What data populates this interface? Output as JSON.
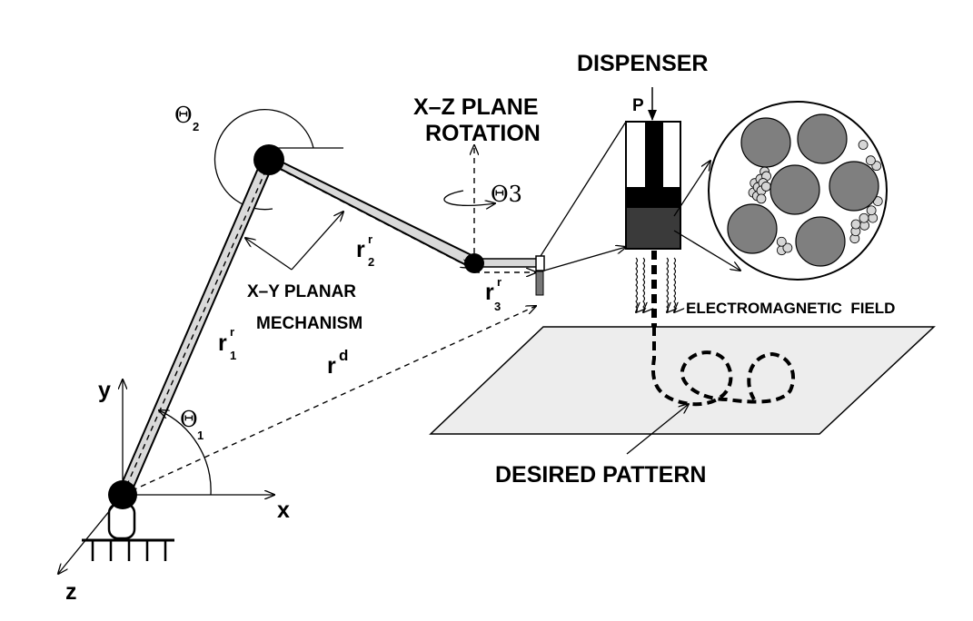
{
  "labels": {
    "dispenser": "DISPENSER",
    "pressure": "P",
    "xz_plane_line1": "X–Z PLANE",
    "xz_plane_line2": "ROTATION",
    "xy_planar_line1": "X–Y PLANAR",
    "xy_planar_line2": "MECHANISM",
    "em_field": "ELECTROMAGNETIC  FIELD",
    "desired_pattern": "DESIRED PATTERN"
  },
  "axes": {
    "x": "x",
    "y": "y",
    "z": "z"
  },
  "symbols": {
    "theta1": "Θ",
    "theta1_sub": "1",
    "theta2": "Θ",
    "theta2_sub": "2",
    "theta3": "Θ3",
    "r1": "r",
    "r1_sup": "r",
    "r1_sub": "1",
    "r2": "r",
    "r2_sup": "r",
    "r2_sub": "2",
    "r3": "r",
    "r3_sup": "r",
    "r3_sub": "3",
    "rd": "r",
    "rd_sup": "d"
  },
  "colors": {
    "link_fill": "#d9d9d9",
    "particle_large": "#7f7f7f",
    "particle_small": "#d6d6d6",
    "nozzle_dark": "#3a3a3a",
    "plate_fill": "#ededed"
  }
}
